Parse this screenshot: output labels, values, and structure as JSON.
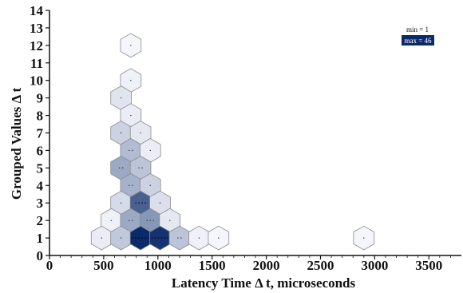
{
  "chart_data": {
    "type": "hexbin",
    "xlabel": "Latency Time  Δ t, microseconds",
    "ylabel": "Grouped Values  Δ t",
    "xlim": [
      0,
      3800
    ],
    "ylim": [
      0,
      14
    ],
    "xticks": [
      0,
      500,
      1000,
      1500,
      2000,
      2500,
      3000,
      3500
    ],
    "yticks": [
      0,
      1,
      2,
      3,
      4,
      5,
      6,
      7,
      8,
      9,
      10,
      11,
      12,
      13,
      14
    ],
    "xtick_labels": [
      "0",
      "500",
      "1000",
      "1500",
      "2000",
      "2500",
      "3000",
      "3500"
    ],
    "ytick_labels": [
      "0",
      "1",
      "2",
      "3",
      "4",
      "5",
      "6",
      "7",
      "8",
      "9",
      "10",
      "11",
      "12",
      "13",
      "14"
    ],
    "grid": false,
    "legend": {
      "position": "top-right",
      "min_label": "min = 1",
      "max_label": "max = 46",
      "min": 1,
      "max": 46
    },
    "colors": {
      "low": "#f4f6fb",
      "high": "#0b2a6b",
      "edge": "#8a8a8a"
    },
    "bins": [
      {
        "x": 750,
        "y": 12,
        "count": 1
      },
      {
        "x": 750,
        "y": 10,
        "count": 2
      },
      {
        "x": 660,
        "y": 9,
        "count": 5
      },
      {
        "x": 750,
        "y": 8,
        "count": 3
      },
      {
        "x": 660,
        "y": 7,
        "count": 9
      },
      {
        "x": 840,
        "y": 7,
        "count": 4
      },
      {
        "x": 750,
        "y": 6,
        "count": 14
      },
      {
        "x": 930,
        "y": 6,
        "count": 3
      },
      {
        "x": 660,
        "y": 5,
        "count": 18
      },
      {
        "x": 840,
        "y": 5,
        "count": 12
      },
      {
        "x": 750,
        "y": 4,
        "count": 16
      },
      {
        "x": 930,
        "y": 4,
        "count": 9
      },
      {
        "x": 660,
        "y": 3,
        "count": 7
      },
      {
        "x": 840,
        "y": 3,
        "count": 34
      },
      {
        "x": 1020,
        "y": 3,
        "count": 6
      },
      {
        "x": 570,
        "y": 2,
        "count": 2
      },
      {
        "x": 750,
        "y": 2,
        "count": 18
      },
      {
        "x": 930,
        "y": 2,
        "count": 22
      },
      {
        "x": 1110,
        "y": 2,
        "count": 4
      },
      {
        "x": 480,
        "y": 1,
        "count": 3
      },
      {
        "x": 660,
        "y": 1,
        "count": 11
      },
      {
        "x": 840,
        "y": 1,
        "count": 46
      },
      {
        "x": 1020,
        "y": 1,
        "count": 44
      },
      {
        "x": 1200,
        "y": 1,
        "count": 12
      },
      {
        "x": 1380,
        "y": 1,
        "count": 2
      },
      {
        "x": 1560,
        "y": 1,
        "count": 1
      },
      {
        "x": 2900,
        "y": 1,
        "count": 1
      }
    ]
  }
}
